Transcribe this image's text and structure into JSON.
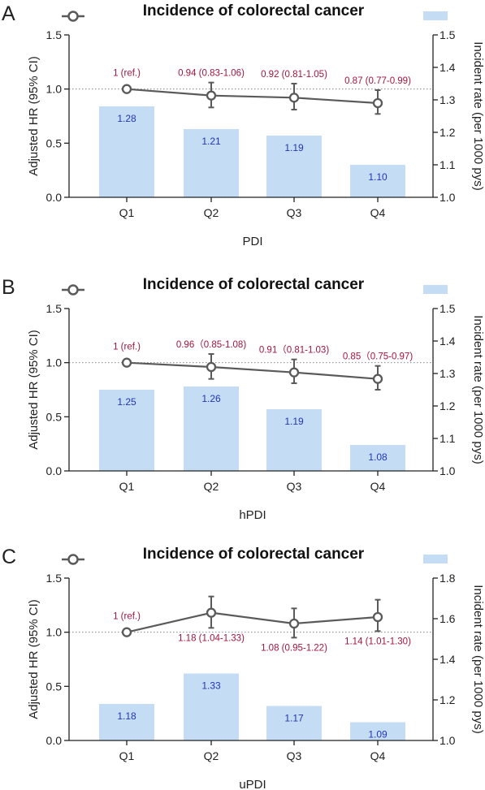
{
  "colors": {
    "bar": "#c5dcf5",
    "line": "#5a5a5a",
    "hr_label": "#a2153f",
    "bar_label": "#2236b6",
    "axis": "#222222",
    "refline": "#888888"
  },
  "chart_data": [
    {
      "type": "bar",
      "panel_letter": "A",
      "title": "Incidence of colorectal cancer",
      "xlabel": "PDI",
      "ylabel_left": "Adjusted HR (95% CI)",
      "ylabel_right": "Incident rate (per 1000 pys)",
      "categories": [
        "Q1",
        "Q2",
        "Q3",
        "Q4"
      ],
      "left_ylim": [
        0,
        1.5
      ],
      "left_ticks": [
        "0.0",
        "0.5",
        "1.0",
        "1.5"
      ],
      "right_ylim": [
        1.0,
        1.5
      ],
      "right_ticks": [
        "1.0",
        "1.1",
        "1.2",
        "1.3",
        "1.4",
        "1.5"
      ],
      "reference_line": 1.0,
      "series": [
        {
          "kind": "bar",
          "axis": "right",
          "values": [
            1.28,
            1.21,
            1.19,
            1.1
          ],
          "labels": [
            "1.28",
            "1.21",
            "1.19",
            "1.10"
          ]
        },
        {
          "kind": "line",
          "axis": "left",
          "values": [
            1.0,
            0.94,
            0.92,
            0.87
          ],
          "ci_low": [
            1.0,
            0.83,
            0.81,
            0.77
          ],
          "ci_high": [
            1.0,
            1.06,
            1.05,
            0.99
          ],
          "labels": [
            "1 (ref.)",
            "0.94 (0.83-1.06)",
            "0.92 (0.81-1.05)",
            "0.87 (0.77-0.99)"
          ],
          "label_position": "above"
        }
      ]
    },
    {
      "type": "bar",
      "panel_letter": "B",
      "title": "Incidence of colorectal cancer",
      "xlabel": "hPDI",
      "ylabel_left": "Adjusted HR (95% CI)",
      "ylabel_right": "Incident rate (per 1000 pys)",
      "categories": [
        "Q1",
        "Q2",
        "Q3",
        "Q4"
      ],
      "left_ylim": [
        0,
        1.5
      ],
      "left_ticks": [
        "0.0",
        "0.5",
        "1.0",
        "1.5"
      ],
      "right_ylim": [
        1.0,
        1.5
      ],
      "right_ticks": [
        "1.0",
        "1.1",
        "1.2",
        "1.3",
        "1.4",
        "1.5"
      ],
      "reference_line": 1.0,
      "series": [
        {
          "kind": "bar",
          "axis": "right",
          "values": [
            1.25,
            1.26,
            1.19,
            1.08
          ],
          "labels": [
            "1.25",
            "1.26",
            "1.19",
            "1.08"
          ]
        },
        {
          "kind": "line",
          "axis": "left",
          "values": [
            1.0,
            0.96,
            0.91,
            0.85
          ],
          "ci_low": [
            1.0,
            0.85,
            0.81,
            0.75
          ],
          "ci_high": [
            1.0,
            1.08,
            1.03,
            0.97
          ],
          "labels": [
            "1 (ref.)",
            "0.96（0.85-1.08)",
            "0.91（0.81-1.03)",
            "0.85（0.75-0.97)"
          ],
          "label_position": "above"
        }
      ]
    },
    {
      "type": "bar",
      "panel_letter": "C",
      "title": "Incidence of colorectal cancer",
      "xlabel": "uPDI",
      "ylabel_left": "Adjusted HR (95% CI)",
      "ylabel_right": "Incident rate (per 1000 pys)",
      "categories": [
        "Q1",
        "Q2",
        "Q3",
        "Q4"
      ],
      "left_ylim": [
        0,
        1.5
      ],
      "left_ticks": [
        "0.0",
        "0.5",
        "1.0",
        "1.5"
      ],
      "right_ylim": [
        1.0,
        1.8
      ],
      "right_ticks": [
        "1.0",
        "1.2",
        "1.4",
        "1.6",
        "1.8"
      ],
      "reference_line": 1.0,
      "series": [
        {
          "kind": "bar",
          "axis": "right",
          "values": [
            1.18,
            1.33,
            1.17,
            1.09
          ],
          "labels": [
            "1.18",
            "1.33",
            "1.17",
            "1.09"
          ]
        },
        {
          "kind": "line",
          "axis": "left",
          "values": [
            1.0,
            1.18,
            1.08,
            1.14
          ],
          "ci_low": [
            1.0,
            1.04,
            0.95,
            1.01
          ],
          "ci_high": [
            1.0,
            1.33,
            1.22,
            1.3
          ],
          "labels": [
            "1 (ref.)",
            "1.18 (1.04-1.33)",
            "1.08 (0.95-1.22)",
            "1.14 (1.01-1.30)"
          ],
          "label_position": "below"
        }
      ]
    }
  ]
}
